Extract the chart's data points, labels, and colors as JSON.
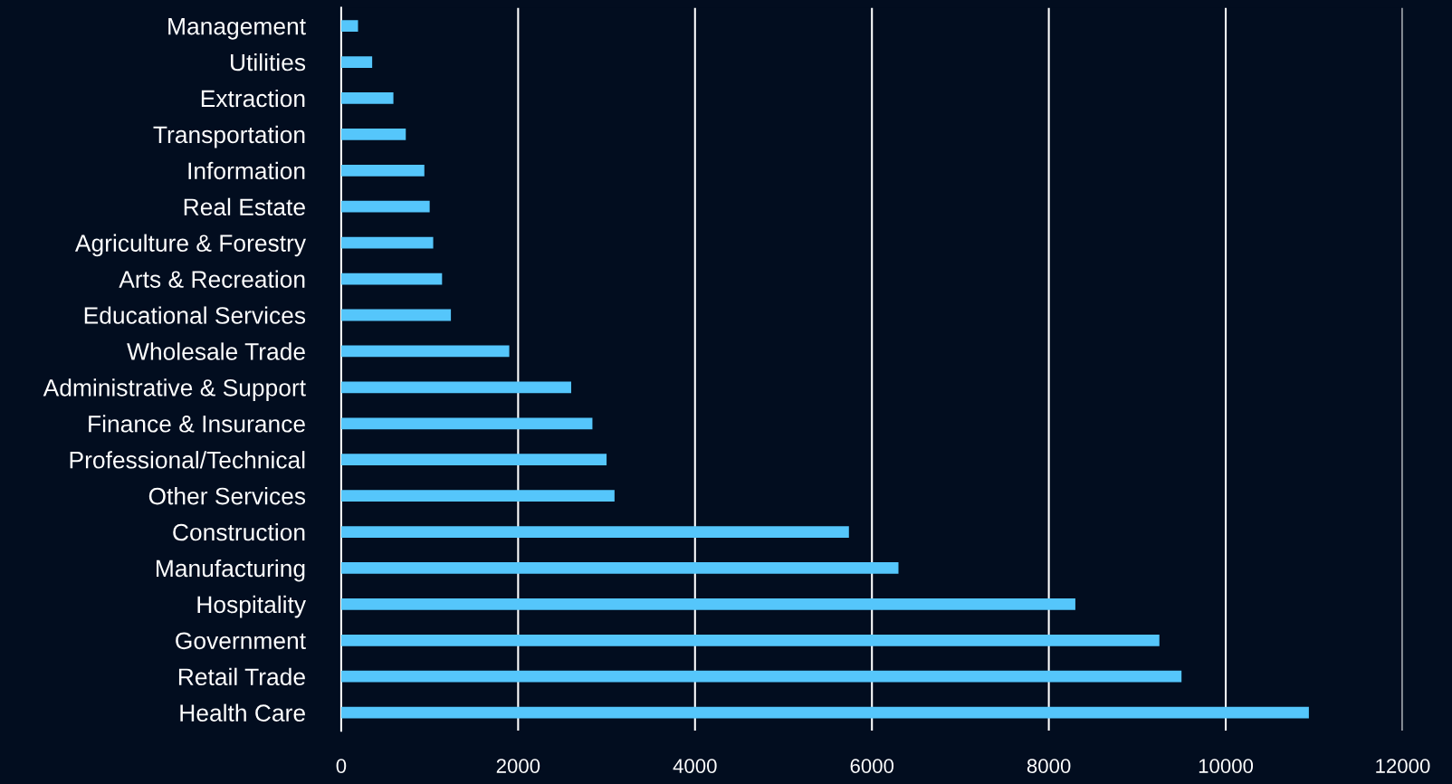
{
  "chart_data": {
    "type": "bar",
    "orientation": "horizontal",
    "categories": [
      "Management",
      "Utilities",
      "Extraction",
      "Transportation",
      "Information",
      "Real Estate",
      "Agriculture & Forestry",
      "Arts & Recreation",
      "Educational Services",
      "Wholesale Trade",
      "Administrative & Support",
      "Finance & Insurance",
      "Professional/Technical",
      "Other Services",
      "Construction",
      "Manufacturing",
      "Hospitality",
      "Government",
      "Retail Trade",
      "Health Care"
    ],
    "values": [
      190,
      350,
      590,
      730,
      940,
      1000,
      1040,
      1140,
      1240,
      1900,
      2600,
      2840,
      3000,
      3090,
      5740,
      6300,
      8300,
      9250,
      9500,
      10940
    ],
    "color": "#55c6fb",
    "xlim": [
      0,
      12000
    ],
    "xticks": [
      0,
      2000,
      4000,
      6000,
      8000,
      10000,
      12000
    ],
    "grid": "x",
    "legend": false
  }
}
